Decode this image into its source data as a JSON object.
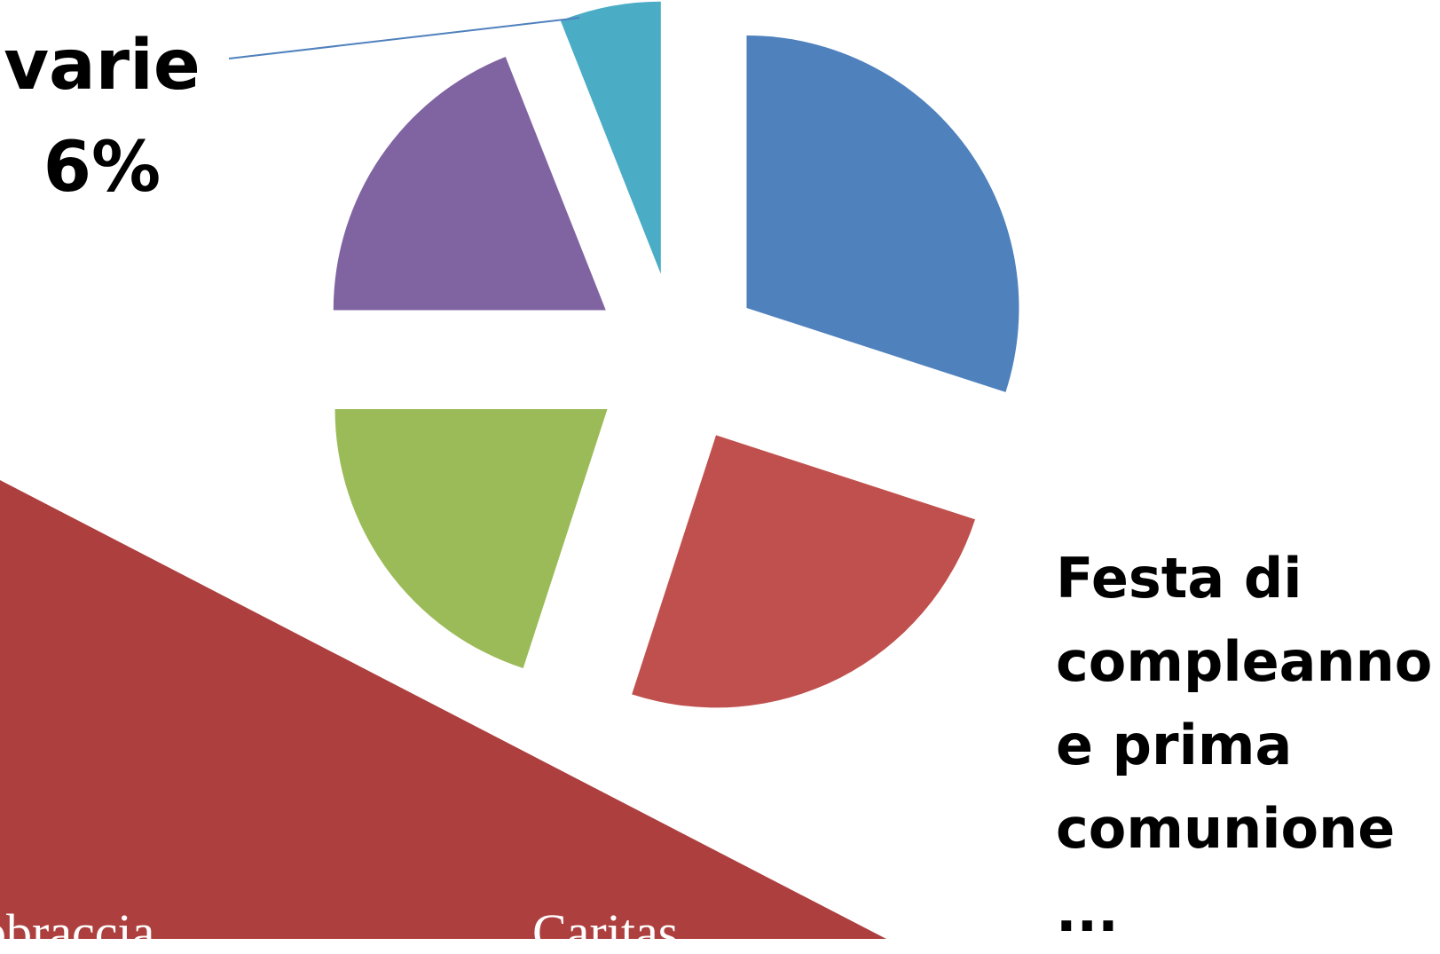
{
  "chart_data": {
    "type": "pie",
    "categories": [
      null,
      "Festa di compleanno e prima comunione ...",
      null,
      null,
      "varie"
    ],
    "values": [
      30,
      25,
      20,
      19,
      6
    ],
    "value_labels": [
      null,
      null,
      null,
      null,
      "6%"
    ],
    "colors": [
      "#4f81bd",
      "#c0504d",
      "#9bbb59",
      "#8064a2",
      "#4bacc6"
    ],
    "exploded": true
  },
  "footer_texts": [
    "bbraccia",
    "Caritas"
  ]
}
